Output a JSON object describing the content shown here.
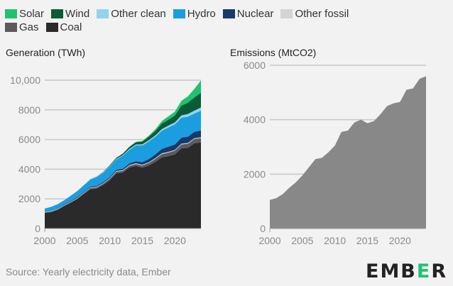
{
  "legend": [
    {
      "name": "Solar",
      "color": "#1fc36f"
    },
    {
      "name": "Wind",
      "color": "#0a5c36"
    },
    {
      "name": "Other clean",
      "color": "#93d3ef"
    },
    {
      "name": "Hydro",
      "color": "#1a9ee0"
    },
    {
      "name": "Nuclear",
      "color": "#163a6b"
    },
    {
      "name": "Other fossil",
      "color": "#d4d4d4"
    },
    {
      "name": "Gas",
      "color": "#5b5b5b"
    },
    {
      "name": "Coal",
      "color": "#2a2a2a"
    }
  ],
  "source": "Source: Yearly electricity data, Ember",
  "logo": {
    "text_a": "EMB",
    "text_e": "E",
    "text_b": "R"
  },
  "chart_data": [
    {
      "type": "area",
      "stacked": true,
      "title": "Generation (TWh)",
      "x": [
        2000,
        2001,
        2002,
        2003,
        2004,
        2005,
        2006,
        2007,
        2008,
        2009,
        2010,
        2011,
        2012,
        2013,
        2014,
        2015,
        2016,
        2017,
        2018,
        2019,
        2020,
        2021,
        2022,
        2023,
        2024
      ],
      "xticks": [
        "2000",
        "2005",
        "2010",
        "2015",
        "2020"
      ],
      "yticks": [
        "0",
        "2000",
        "4000",
        "6000",
        "8000",
        "10,000"
      ],
      "ylim": [
        0,
        10000
      ],
      "grid": true,
      "series": [
        {
          "name": "Coal",
          "color": "#2a2a2a",
          "values": [
            1060,
            1120,
            1270,
            1520,
            1740,
            1990,
            2330,
            2650,
            2700,
            2940,
            3260,
            3720,
            3780,
            4110,
            4220,
            4100,
            4250,
            4500,
            4800,
            4880,
            5000,
            5400,
            5450,
            5750,
            5800
          ]
        },
        {
          "name": "Gas",
          "color": "#5b5b5b",
          "values": [
            15,
            20,
            25,
            30,
            35,
            40,
            50,
            70,
            80,
            90,
            100,
            110,
            115,
            120,
            130,
            150,
            170,
            200,
            220,
            240,
            250,
            270,
            270,
            290,
            300
          ]
        },
        {
          "name": "Other fossil",
          "color": "#d4d4d4",
          "values": [
            30,
            30,
            30,
            30,
            30,
            35,
            35,
            35,
            40,
            40,
            40,
            45,
            45,
            45,
            50,
            50,
            50,
            50,
            50,
            50,
            50,
            50,
            50,
            50,
            50
          ]
        },
        {
          "name": "Nuclear",
          "color": "#163a6b",
          "values": [
            17,
            17,
            25,
            43,
            50,
            53,
            55,
            62,
            68,
            70,
            74,
            86,
            97,
            112,
            133,
            171,
            213,
            248,
            295,
            348,
            366,
            408,
            418,
            435,
            450
          ]
        },
        {
          "name": "Hydro",
          "color": "#1a9ee0",
          "values": [
            222,
            277,
            288,
            284,
            354,
            397,
            436,
            486,
            585,
            616,
            722,
            699,
            872,
            921,
            1064,
            1130,
            1193,
            1194,
            1232,
            1302,
            1355,
            1340,
            1352,
            1226,
            1350
          ]
        },
        {
          "name": "Other clean",
          "color": "#93d3ef",
          "values": [
            2,
            3,
            3,
            5,
            6,
            10,
            15,
            20,
            25,
            30,
            35,
            40,
            45,
            55,
            65,
            75,
            80,
            90,
            110,
            115,
            130,
            160,
            180,
            200,
            210
          ]
        },
        {
          "name": "Wind",
          "color": "#0a5c36",
          "values": [
            1,
            1,
            1,
            1,
            1,
            2,
            4,
            6,
            13,
            27,
            45,
            70,
            96,
            141,
            156,
            186,
            241,
            295,
            366,
            406,
            467,
            656,
            762,
            886,
            997
          ]
        },
        {
          "name": "Solar",
          "color": "#1fc36f",
          "values": [
            0,
            0,
            0,
            0,
            0,
            0,
            0,
            0,
            0,
            0,
            1,
            2,
            4,
            8,
            23,
            39,
            66,
            118,
            178,
            224,
            261,
            327,
            427,
            584,
            834
          ]
        }
      ]
    },
    {
      "type": "area",
      "title": "Emissions (MtCO2)",
      "x": [
        2000,
        2001,
        2002,
        2003,
        2004,
        2005,
        2006,
        2007,
        2008,
        2009,
        2010,
        2011,
        2012,
        2013,
        2014,
        2015,
        2016,
        2017,
        2018,
        2019,
        2020,
        2021,
        2022,
        2023,
        2024
      ],
      "xticks": [
        "2000",
        "2005",
        "2010",
        "2015",
        "2020"
      ],
      "yticks": [
        "0",
        "2000",
        "4000",
        "6000"
      ],
      "ylim": [
        0,
        6000
      ],
      "grid": true,
      "color": "#888888",
      "values": [
        1050,
        1120,
        1270,
        1500,
        1700,
        1950,
        2250,
        2550,
        2600,
        2800,
        3050,
        3550,
        3600,
        3900,
        4000,
        3870,
        3950,
        4200,
        4500,
        4600,
        4650,
        5100,
        5150,
        5500,
        5600
      ]
    }
  ]
}
